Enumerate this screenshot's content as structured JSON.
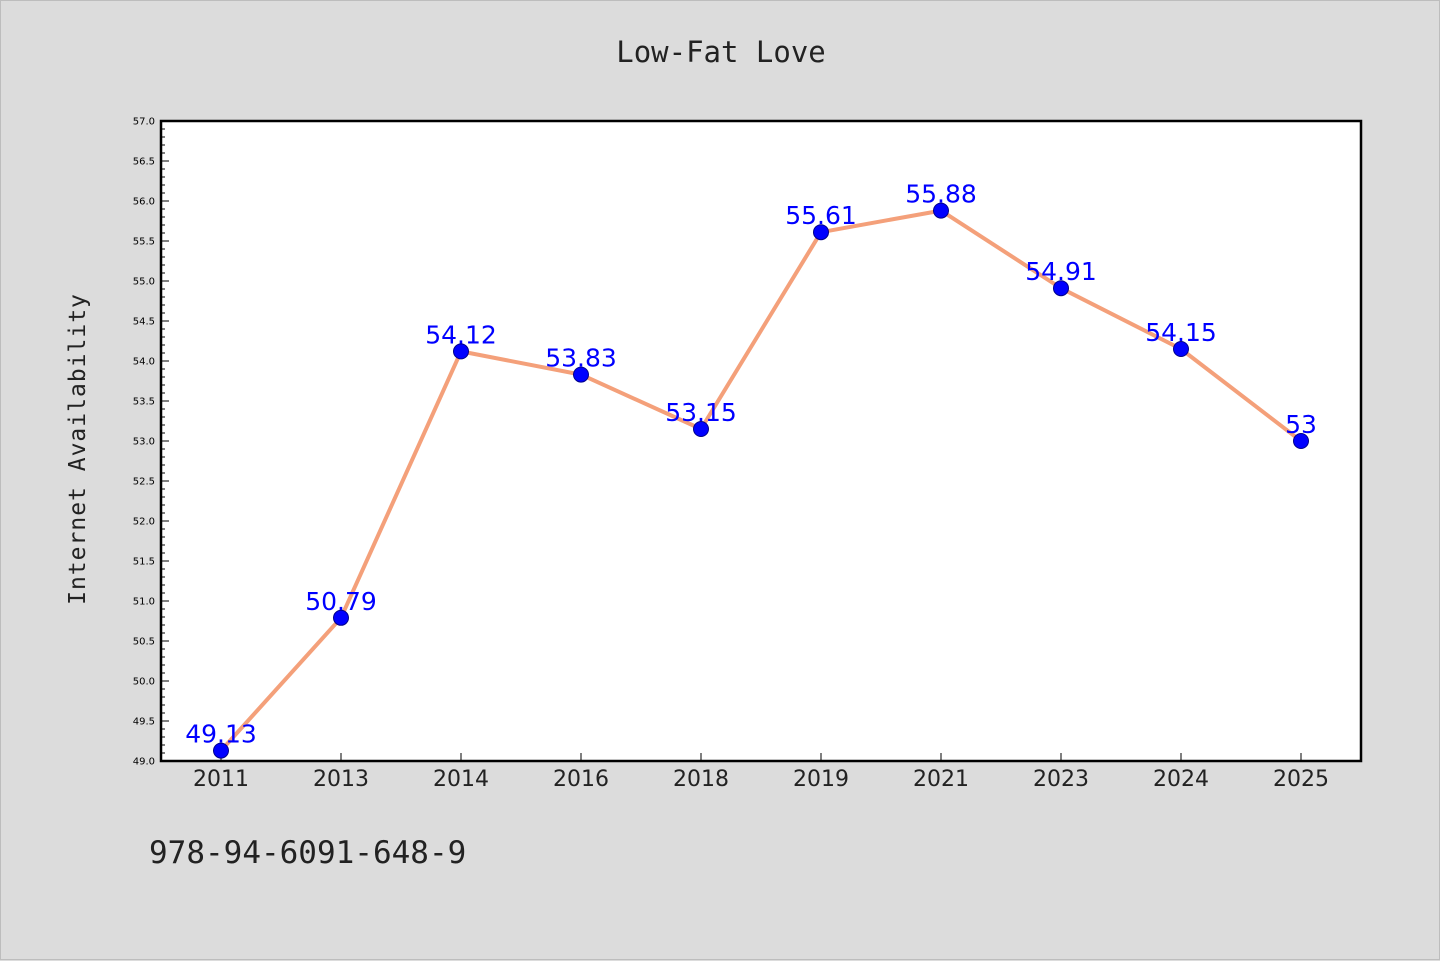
{
  "chart_data": {
    "type": "line",
    "title": "Low-Fat Love",
    "xlabel": "",
    "ylabel": "Internet Availability",
    "categories": [
      "2011",
      "2013",
      "2014",
      "2016",
      "2018",
      "2019",
      "2021",
      "2023",
      "2024",
      "2025"
    ],
    "values": [
      49.13,
      50.79,
      54.12,
      53.83,
      53.15,
      55.61,
      55.88,
      54.91,
      54.15,
      53
    ],
    "data_labels": [
      "49.13",
      "50.79",
      "54.12",
      "53.83",
      "53.15",
      "55.61",
      "55.88",
      "54.91",
      "54.15",
      "53"
    ],
    "ylim": [
      49.0,
      57.0
    ],
    "yticks": [
      "49.0",
      "49.5",
      "50.0",
      "50.5",
      "51.0",
      "51.5",
      "52.0",
      "52.5",
      "53.0",
      "53.5",
      "54.0",
      "54.5",
      "55.0",
      "55.5",
      "56.0",
      "56.5",
      "57.0"
    ],
    "grid": false,
    "line_color": "#f4a07a",
    "marker_color": "#0000ff",
    "label_color": "#0000ff"
  },
  "footer": {
    "code": "978-94-6091-648-9"
  }
}
